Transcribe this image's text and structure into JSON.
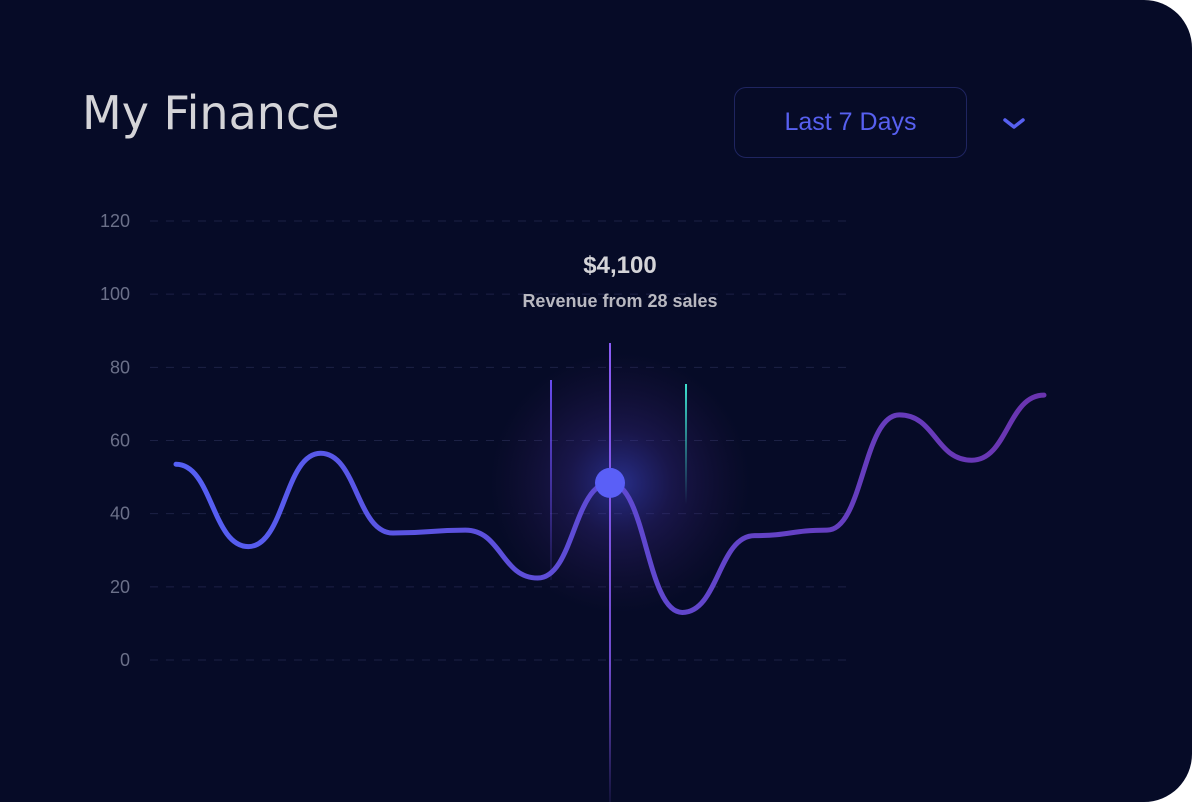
{
  "header": {
    "title": "My Finance",
    "range_label": "Last 7 Days"
  },
  "tooltip": {
    "value": "$4,100",
    "label": "Revenue from 28 sales"
  },
  "colors": {
    "background": "#060b27",
    "line_start": "#5560f5",
    "line_end": "#6a34b0",
    "accent": "#5760f0",
    "marker": "#5a5ff7"
  },
  "icons": {
    "dropdown": "chevron-down-icon"
  },
  "chart_data": {
    "type": "line",
    "title": "",
    "xlabel": "",
    "ylabel": "",
    "ylim": [
      0,
      120
    ],
    "yticks": [
      "120",
      "100",
      "80",
      "60",
      "40",
      "20",
      "0"
    ],
    "grid": true,
    "values": [
      53.5,
      31,
      56.5,
      34.7,
      35.5,
      22.4,
      48.4,
      13,
      34,
      35.5,
      67,
      54.6,
      72.4
    ],
    "highlight_index": 6
  }
}
